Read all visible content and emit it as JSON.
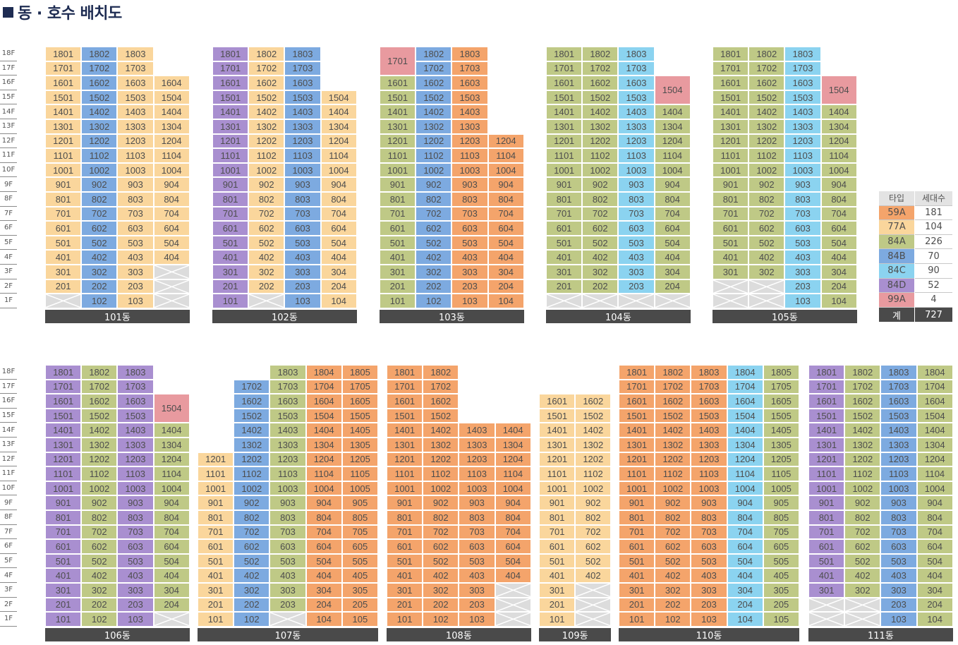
{
  "title": "동 · 호수 배치도",
  "colors": {
    "59A": "#f4a46b",
    "77A": "#fad69c",
    "84A": "#bfc986",
    "84B": "#7daae0",
    "84C": "#8bd3f0",
    "84D": "#a98fd0",
    "99A": "#e89a9f",
    "empty": "#dcdcdc",
    "footer": "#4a4a4a"
  },
  "floor_labels": [
    "18F",
    "17F",
    "16F",
    "15F",
    "14F",
    "13F",
    "12F",
    "11F",
    "10F",
    "9F",
    "8F",
    "7F",
    "6F",
    "5F",
    "4F",
    "3F",
    "2F",
    "1F"
  ],
  "legend": {
    "headers": [
      "타입",
      "세대수"
    ],
    "rows": [
      {
        "type": "59A",
        "count": "181"
      },
      {
        "type": "77A",
        "count": "104"
      },
      {
        "type": "84A",
        "count": "226"
      },
      {
        "type": "84B",
        "count": "70"
      },
      {
        "type": "84C",
        "count": "90"
      },
      {
        "type": "84D",
        "count": "52"
      },
      {
        "type": "99A",
        "count": "4"
      }
    ],
    "total_label": "계",
    "total": "727"
  },
  "buildings": [
    {
      "name": "101동",
      "cols": [
        {
          "type": "77A",
          "top": 18,
          "empty": [
            1
          ]
        },
        {
          "type": "84B",
          "top": 18,
          "empty": []
        },
        {
          "type": "77A",
          "top": 18,
          "empty": []
        },
        {
          "type": "77A",
          "top": 16,
          "empty": [
            1,
            2,
            3
          ]
        }
      ]
    },
    {
      "name": "102동",
      "cols": [
        {
          "type": "84D",
          "top": 18,
          "empty": []
        },
        {
          "type": "77A",
          "top": 18,
          "empty": [
            1
          ]
        },
        {
          "type": "84B",
          "top": 18,
          "empty": []
        },
        {
          "type": "77A",
          "top": 15,
          "empty": []
        }
      ]
    },
    {
      "name": "103동",
      "cols": [
        {
          "type": "84A",
          "top": 18,
          "empty": [],
          "override": {
            "17": "99A",
            "18": "hide"
          },
          "merge": {
            "17": {
              "label": "1701",
              "type": "99A"
            }
          }
        },
        {
          "type": "84B",
          "top": 18,
          "empty": []
        },
        {
          "type": "59A",
          "top": 18,
          "empty": []
        },
        {
          "type": "59A",
          "top": 12,
          "empty": []
        }
      ]
    },
    {
      "name": "104동",
      "cols": [
        {
          "type": "84A",
          "top": 18,
          "empty": [
            1
          ]
        },
        {
          "type": "84A",
          "top": 18,
          "empty": [
            1
          ]
        },
        {
          "type": "84C",
          "top": 18,
          "empty": [
            1
          ]
        },
        {
          "type": "84A",
          "top": 14,
          "empty": [
            1
          ],
          "merge": {
            "15": {
              "label": "1504",
              "type": "99A"
            }
          }
        }
      ]
    },
    {
      "name": "105동",
      "cols": [
        {
          "type": "84A",
          "top": 18,
          "empty": [
            1,
            2
          ]
        },
        {
          "type": "84A",
          "top": 18,
          "empty": [
            1,
            2
          ]
        },
        {
          "type": "84C",
          "top": 18,
          "empty": []
        },
        {
          "type": "84A",
          "top": 14,
          "empty": [],
          "merge": {
            "15": {
              "label": "1504",
              "type": "99A"
            }
          }
        }
      ]
    },
    {
      "name": "106동",
      "cols": [
        {
          "type": "84D",
          "top": 18,
          "empty": []
        },
        {
          "type": "84A",
          "top": 18,
          "empty": []
        },
        {
          "type": "84D",
          "top": 18,
          "empty": []
        },
        {
          "type": "84A",
          "top": 14,
          "empty": [
            1
          ],
          "merge": {
            "15": {
              "label": "1504",
              "type": "99A"
            }
          }
        }
      ]
    },
    {
      "name": "107동",
      "cols": [
        {
          "type": "77A",
          "top": 12,
          "empty": []
        },
        {
          "type": "84B",
          "top": 17,
          "empty": []
        },
        {
          "type": "84A",
          "top": 18,
          "empty": [
            1
          ]
        },
        {
          "type": "59A",
          "top": 18,
          "empty": []
        },
        {
          "type": "59A",
          "top": 18,
          "empty": []
        }
      ]
    },
    {
      "name": "108동",
      "cols": [
        {
          "type": "59A",
          "top": 18,
          "empty": []
        },
        {
          "type": "59A",
          "top": 18,
          "empty": []
        },
        {
          "type": "59A",
          "top": 14,
          "empty": []
        },
        {
          "type": "59A",
          "top": 14,
          "empty": [
            1,
            2,
            3
          ]
        }
      ]
    },
    {
      "name": "109동",
      "cols": [
        {
          "type": "77A",
          "top": 16,
          "empty": []
        },
        {
          "type": "77A",
          "top": 16,
          "empty": [
            1,
            2,
            3
          ]
        }
      ]
    },
    {
      "name": "110동",
      "cols": [
        {
          "type": "59A",
          "top": 18,
          "empty": []
        },
        {
          "type": "59A",
          "top": 18,
          "empty": []
        },
        {
          "type": "59A",
          "top": 18,
          "empty": []
        },
        {
          "type": "84C",
          "top": 18,
          "empty": []
        },
        {
          "type": "84A",
          "top": 18,
          "empty": []
        }
      ]
    },
    {
      "name": "111동",
      "cols": [
        {
          "type": "84D",
          "top": 18,
          "empty": [
            1,
            2
          ]
        },
        {
          "type": "84A",
          "top": 18,
          "empty": [
            1,
            2
          ]
        },
        {
          "type": "84B",
          "top": 18,
          "empty": []
        },
        {
          "type": "84A",
          "top": 18,
          "empty": []
        }
      ]
    }
  ]
}
